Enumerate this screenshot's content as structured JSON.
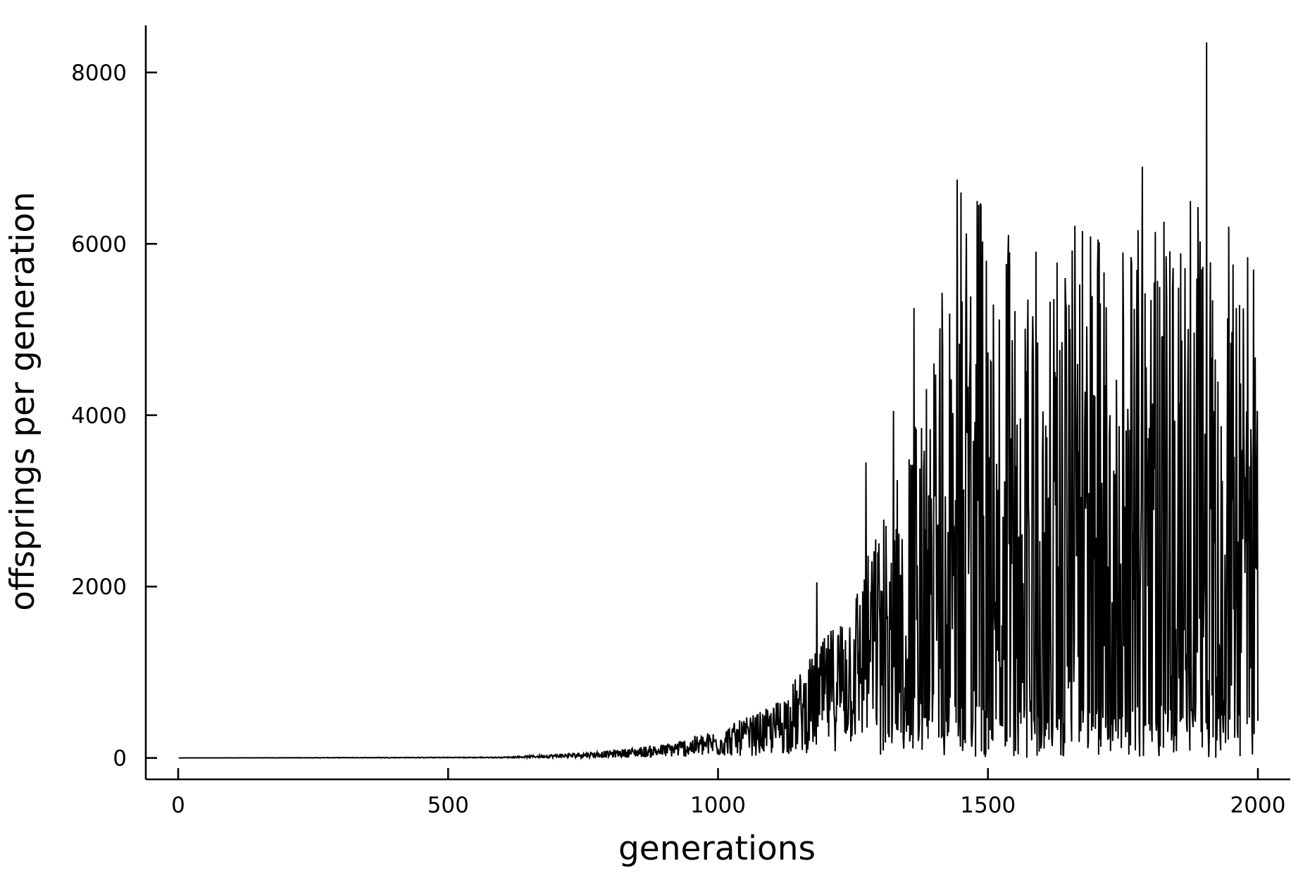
{
  "chart_data": {
    "type": "line",
    "title": "",
    "xlabel": "generations",
    "ylabel": "offsprings per generation",
    "xlim": [
      -60,
      2060
    ],
    "ylim": [
      -250,
      8550
    ],
    "grid": false,
    "legend": "none",
    "line_color": "#000000",
    "x_ticks": [
      0,
      500,
      1000,
      1500,
      2000
    ],
    "x_tick_labels": [
      "0",
      "500",
      "1000",
      "1500",
      "2000"
    ],
    "y_ticks": [
      0,
      2000,
      4000,
      6000,
      8000
    ],
    "y_tick_labels": [
      "0",
      "2000",
      "4000",
      "6000",
      "8000"
    ],
    "series": [
      {
        "x_start": 1,
        "x_step": 1,
        "envelope_x": [
          1,
          600,
          700,
          800,
          900,
          1000,
          1100,
          1150,
          1200,
          1250,
          1300,
          1350,
          1400,
          1450,
          1500,
          1550,
          1600,
          1650,
          1700,
          1750,
          1800,
          1850,
          1900,
          1950,
          2000
        ],
        "envelope_y": [
          0,
          10,
          40,
          80,
          150,
          300,
          550,
          900,
          1300,
          1800,
          2500,
          3400,
          4300,
          5200,
          5300,
          5000,
          4800,
          5000,
          5100,
          5100,
          5200,
          5200,
          5200,
          5000,
          5000
        ],
        "peaks": [
          {
            "x": 1183,
            "y": 2050
          },
          {
            "x": 1274,
            "y": 3450
          },
          {
            "x": 1325,
            "y": 4050
          },
          {
            "x": 1363,
            "y": 5250
          },
          {
            "x": 1443,
            "y": 6750
          },
          {
            "x": 1450,
            "y": 6600
          },
          {
            "x": 1480,
            "y": 6500
          },
          {
            "x": 1487,
            "y": 6450
          },
          {
            "x": 1540,
            "y": 5900
          },
          {
            "x": 1574,
            "y": 5350
          },
          {
            "x": 1643,
            "y": 5600
          },
          {
            "x": 1675,
            "y": 6150
          },
          {
            "x": 1750,
            "y": 5900
          },
          {
            "x": 1786,
            "y": 6900
          },
          {
            "x": 1808,
            "y": 5550
          },
          {
            "x": 1831,
            "y": 5350
          },
          {
            "x": 1875,
            "y": 6500
          },
          {
            "x": 1905,
            "y": 8350
          },
          {
            "x": 1960,
            "y": 5250
          },
          {
            "x": 1992,
            "y": 5700
          },
          {
            "x": 1999,
            "y": 4050
          }
        ]
      }
    ]
  }
}
